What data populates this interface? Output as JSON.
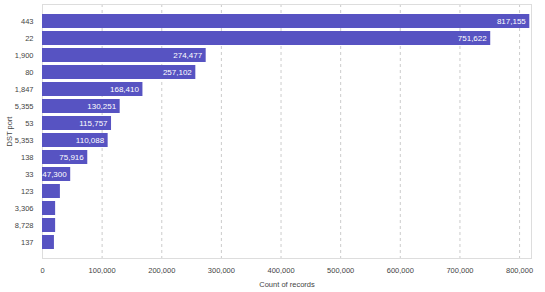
{
  "chart_data": {
    "type": "bar",
    "orientation": "horizontal",
    "x_label": "Count of records",
    "y_label": "DST port",
    "categories": [
      "443",
      "22",
      "1,900",
      "80",
      "1,847",
      "5,355",
      "53",
      "5,353",
      "138",
      "33",
      "123",
      "3,306",
      "8,728",
      "137"
    ],
    "values": [
      817155,
      751622,
      274477,
      257102,
      168410,
      130251,
      115757,
      110088,
      75916,
      47300,
      30000,
      22000,
      22000,
      20000
    ],
    "value_labels": [
      "817,155",
      "751,622",
      "274,477",
      "257,102",
      "168,410",
      "130,251",
      "115,757",
      "110,088",
      "75,916",
      "47,300",
      null,
      null,
      null,
      null
    ],
    "data_labels": true,
    "color": "#5753c2",
    "xlim": [
      0,
      820000
    ],
    "xticks": [
      0,
      {
        "value": 100000,
        "label": "100,000"
      },
      {
        "value": 200000,
        "label": "200,000"
      },
      {
        "value": 300000,
        "label": "300,000"
      },
      {
        "value": 400000,
        "label": "400,000"
      },
      {
        "value": 500000,
        "label": "500,000"
      },
      {
        "value": 600000,
        "label": "600,000"
      },
      {
        "value": 700000,
        "label": "700,000"
      },
      {
        "value": 800000,
        "label": "800,000"
      }
    ],
    "grid": true
  }
}
